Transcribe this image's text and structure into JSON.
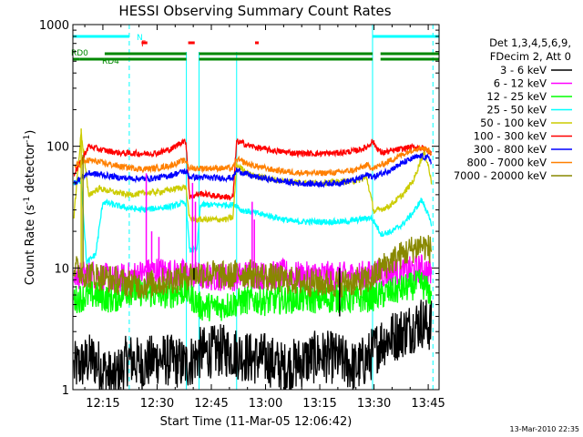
{
  "chart_data": {
    "type": "line",
    "title": "HESSI Observing Summary Count Rates",
    "xlabel": "Start Time (11-Mar-05 12:06:42)",
    "ylabel_main": "Count Rate (s",
    "ylabel_sup1": "-1",
    "ylabel_mid": " detector",
    "ylabel_sup2": "-1",
    "ylabel_end": ")",
    "y_scale": "log",
    "ylim": [
      1,
      1000
    ],
    "xlim_minutes": [
      6.7,
      108
    ],
    "x_ticks": [
      {
        "t": 15,
        "label": "12:15"
      },
      {
        "t": 30,
        "label": "12:30"
      },
      {
        "t": 45,
        "label": "12:45"
      },
      {
        "t": 60,
        "label": "13:00"
      },
      {
        "t": 75,
        "label": "13:15"
      },
      {
        "t": 90,
        "label": "13:30"
      },
      {
        "t": 105,
        "label": "13:45"
      }
    ],
    "y_ticks": [
      {
        "v": 1,
        "label": "1"
      },
      {
        "v": 10,
        "label": "10"
      },
      {
        "v": 100,
        "label": "100"
      },
      {
        "v": 1000,
        "label": "1000"
      }
    ],
    "legend_header": [
      "Det 1,3,4,5,6,9,",
      "FDecim 2, Att 0"
    ],
    "legend_position": "right",
    "flags": [
      {
        "label": "N",
        "color": "#00ffff",
        "segments": [
          [
            6.7,
            22.3
          ],
          [
            89.6,
            108
          ]
        ]
      },
      {
        "label": "F",
        "color": "#ff0000",
        "segments": [
          [
            25.7,
            27.3
          ],
          [
            38.6,
            40.4
          ],
          [
            57.1,
            58.1
          ]
        ]
      },
      {
        "label": "RD0",
        "color": "#008800",
        "segments": [
          [
            6.7,
            8.5
          ]
        ]
      },
      {
        "label": "RD4",
        "color": "#008800",
        "segments": [
          [
            8.5,
            15.5
          ],
          [
            15.5,
            38.1
          ],
          [
            41.6,
            89.6
          ],
          [
            91.8,
            108
          ]
        ]
      }
    ],
    "night_boundaries": [
      6.7,
      22.3,
      89.6,
      106.3
    ],
    "saa_boundaries": [
      38.1,
      41.6,
      52.0
    ],
    "series": [
      {
        "name": "3 - 6 keV",
        "color": "#000000",
        "style": "noisy",
        "points": [
          [
            7,
            1.5
          ],
          [
            12,
            1.8
          ],
          [
            18,
            1.2
          ],
          [
            22,
            1.8
          ],
          [
            26,
            1.6
          ],
          [
            30,
            1.8
          ],
          [
            35,
            1.7
          ],
          [
            38,
            1.6
          ],
          [
            42,
            2.0
          ],
          [
            48,
            2.1
          ],
          [
            52,
            2.0
          ],
          [
            56,
            1.8
          ],
          [
            60,
            1.8
          ],
          [
            65,
            1.5
          ],
          [
            70,
            1.7
          ],
          [
            75,
            1.9
          ],
          [
            80,
            1.8
          ],
          [
            85,
            1.5
          ],
          [
            89,
            1.9
          ],
          [
            92,
            2.5
          ],
          [
            96,
            2.8
          ],
          [
            100,
            3.2
          ],
          [
            103,
            3.6
          ],
          [
            106,
            3.3
          ]
        ]
      },
      {
        "name": "6 - 12 keV",
        "color": "#ff00ff",
        "style": "noisy",
        "points": [
          [
            7,
            8.5
          ],
          [
            12,
            9
          ],
          [
            18,
            8
          ],
          [
            22,
            8.5
          ],
          [
            26,
            9
          ],
          [
            30,
            9.5
          ],
          [
            35,
            9
          ],
          [
            38,
            9
          ],
          [
            42,
            8.5
          ],
          [
            48,
            8.5
          ],
          [
            52,
            8.5
          ],
          [
            56,
            9
          ],
          [
            60,
            8.5
          ],
          [
            65,
            9
          ],
          [
            70,
            8.5
          ],
          [
            75,
            8.8
          ],
          [
            80,
            8.5
          ],
          [
            85,
            8.7
          ],
          [
            89,
            8.8
          ],
          [
            92,
            9
          ],
          [
            96,
            9.3
          ],
          [
            100,
            9.5
          ],
          [
            103,
            10
          ],
          [
            106,
            9
          ]
        ]
      },
      {
        "name": "12 - 25 keV",
        "color": "#00ff00",
        "style": "noisy",
        "points": [
          [
            7,
            5.5
          ],
          [
            12,
            6
          ],
          [
            18,
            5.5
          ],
          [
            22,
            6.5
          ],
          [
            26,
            6.3
          ],
          [
            30,
            6
          ],
          [
            35,
            6.2
          ],
          [
            38,
            6.5
          ],
          [
            42,
            4.8
          ],
          [
            48,
            4.8
          ],
          [
            52,
            5.2
          ],
          [
            56,
            5.5
          ],
          [
            60,
            5.3
          ],
          [
            65,
            5.5
          ],
          [
            70,
            5.6
          ],
          [
            75,
            5.5
          ],
          [
            80,
            5.6
          ],
          [
            85,
            5.5
          ],
          [
            89,
            5.7
          ],
          [
            92,
            6
          ],
          [
            96,
            6.5
          ],
          [
            100,
            7
          ],
          [
            103,
            7.5
          ],
          [
            106,
            6
          ]
        ]
      },
      {
        "name": "25 - 50 keV",
        "color": "#00ffff",
        "style": "smooth",
        "points": [
          [
            7,
            50
          ],
          [
            9,
            52
          ],
          [
            10.5,
            11
          ],
          [
            13,
            13
          ],
          [
            15,
            35
          ],
          [
            18,
            33
          ],
          [
            22,
            31
          ],
          [
            26,
            30
          ],
          [
            30,
            31
          ],
          [
            34,
            32
          ],
          [
            37,
            34
          ],
          [
            38,
            34
          ],
          [
            39,
            14
          ],
          [
            41,
            14
          ],
          [
            42,
            33
          ],
          [
            46,
            33
          ],
          [
            50,
            33
          ],
          [
            52,
            33
          ],
          [
            53,
            30
          ],
          [
            58,
            28
          ],
          [
            63,
            26
          ],
          [
            68,
            24
          ],
          [
            73,
            24
          ],
          [
            78,
            24
          ],
          [
            82,
            24
          ],
          [
            86,
            25
          ],
          [
            89,
            26
          ],
          [
            90,
            24
          ],
          [
            92,
            19
          ],
          [
            95,
            20
          ],
          [
            98,
            23
          ],
          [
            101,
            29
          ],
          [
            103,
            36
          ],
          [
            104,
            33
          ],
          [
            106,
            22
          ]
        ]
      },
      {
        "name": "50 - 100 keV",
        "color": "#cccc00",
        "style": "smooth",
        "points": [
          [
            7,
            27
          ],
          [
            9,
            130
          ],
          [
            11,
            40
          ],
          [
            14,
            45
          ],
          [
            18,
            42
          ],
          [
            22,
            40
          ],
          [
            26,
            41
          ],
          [
            30,
            42
          ],
          [
            34,
            44
          ],
          [
            37,
            46
          ],
          [
            38,
            46
          ],
          [
            39,
            25
          ],
          [
            45,
            25
          ],
          [
            49,
            25
          ],
          [
            51,
            26
          ],
          [
            52,
            70
          ],
          [
            56,
            58
          ],
          [
            62,
            53
          ],
          [
            68,
            51
          ],
          [
            74,
            50
          ],
          [
            80,
            51
          ],
          [
            85,
            52
          ],
          [
            88,
            55
          ],
          [
            90,
            29
          ],
          [
            94,
            32
          ],
          [
            98,
            40
          ],
          [
            101,
            53
          ],
          [
            103,
            78
          ],
          [
            104,
            88
          ],
          [
            105,
            70
          ],
          [
            106,
            48
          ]
        ]
      },
      {
        "name": "100 - 300 keV",
        "color": "#ff0000",
        "style": "smooth",
        "points": [
          [
            7,
            60
          ],
          [
            9,
            75
          ],
          [
            11,
            100
          ],
          [
            15,
            93
          ],
          [
            20,
            88
          ],
          [
            26,
            87
          ],
          [
            30,
            88
          ],
          [
            34,
            95
          ],
          [
            37,
            110
          ],
          [
            38,
            108
          ],
          [
            39,
            38
          ],
          [
            42,
            41
          ],
          [
            46,
            39
          ],
          [
            51,
            38
          ],
          [
            52,
            110
          ],
          [
            56,
            100
          ],
          [
            62,
            92
          ],
          [
            68,
            88
          ],
          [
            74,
            87
          ],
          [
            80,
            88
          ],
          [
            85,
            92
          ],
          [
            88,
            98
          ],
          [
            89.5,
            110
          ],
          [
            92,
            88
          ],
          [
            96,
            93
          ],
          [
            100,
            98
          ],
          [
            103,
            98
          ],
          [
            105,
            92
          ],
          [
            106,
            86
          ]
        ]
      },
      {
        "name": "300 - 800 keV",
        "color": "#0000ff",
        "style": "smooth",
        "points": [
          [
            7,
            50
          ],
          [
            9,
            55
          ],
          [
            11,
            60
          ],
          [
            15,
            58
          ],
          [
            20,
            55
          ],
          [
            26,
            54
          ],
          [
            30,
            55
          ],
          [
            34,
            58
          ],
          [
            37,
            62
          ],
          [
            38,
            62
          ],
          [
            39,
            56
          ],
          [
            45,
            55
          ],
          [
            51,
            55
          ],
          [
            52,
            64
          ],
          [
            56,
            57
          ],
          [
            62,
            53
          ],
          [
            68,
            50
          ],
          [
            74,
            49
          ],
          [
            80,
            50
          ],
          [
            85,
            53
          ],
          [
            88,
            58
          ],
          [
            90,
            56
          ],
          [
            94,
            63
          ],
          [
            98,
            73
          ],
          [
            101,
            80
          ],
          [
            103,
            83
          ],
          [
            105,
            80
          ],
          [
            106,
            75
          ]
        ]
      },
      {
        "name": "800 - 7000 keV",
        "color": "#ff8000",
        "style": "smooth",
        "points": [
          [
            7,
            68
          ],
          [
            9,
            72
          ],
          [
            11,
            77
          ],
          [
            15,
            73
          ],
          [
            20,
            68
          ],
          [
            26,
            65
          ],
          [
            30,
            66
          ],
          [
            34,
            70
          ],
          [
            37,
            76
          ],
          [
            38,
            76
          ],
          [
            39,
            66
          ],
          [
            45,
            66
          ],
          [
            51,
            66
          ],
          [
            52,
            78
          ],
          [
            56,
            70
          ],
          [
            62,
            64
          ],
          [
            68,
            61
          ],
          [
            74,
            60
          ],
          [
            80,
            61
          ],
          [
            85,
            64
          ],
          [
            88,
            70
          ],
          [
            90,
            66
          ],
          [
            94,
            75
          ],
          [
            98,
            86
          ],
          [
            101,
            95
          ],
          [
            103,
            98
          ],
          [
            105,
            93
          ],
          [
            106,
            88
          ]
        ]
      },
      {
        "name": "7000 - 20000 keV",
        "color": "#888800",
        "style": "noisy",
        "points": [
          [
            7,
            10
          ],
          [
            10,
            9
          ],
          [
            14,
            8.5
          ],
          [
            18,
            8
          ],
          [
            22,
            7.5
          ],
          [
            26,
            7.2
          ],
          [
            30,
            7.5
          ],
          [
            34,
            8
          ],
          [
            38,
            8.5
          ],
          [
            40,
            9
          ],
          [
            45,
            9
          ],
          [
            50,
            8.5
          ],
          [
            52,
            9
          ],
          [
            56,
            9
          ],
          [
            60,
            8.5
          ],
          [
            65,
            8
          ],
          [
            70,
            7.7
          ],
          [
            75,
            7.5
          ],
          [
            80,
            7.5
          ],
          [
            85,
            7.7
          ],
          [
            89,
            8
          ],
          [
            92,
            10
          ],
          [
            96,
            12
          ],
          [
            100,
            14
          ],
          [
            103,
            15.5
          ],
          [
            106,
            14
          ]
        ]
      }
    ],
    "spikes": [
      {
        "t": 9.0,
        "v": 140,
        "color": "#cccc00"
      },
      {
        "t": 9.5,
        "v": 85,
        "color": "#888800"
      },
      {
        "t": 27.0,
        "v": 60,
        "color": "#ff00ff"
      },
      {
        "t": 28.5,
        "v": 20,
        "color": "#ff00ff"
      },
      {
        "t": 30.5,
        "v": 18,
        "color": "#ff00ff"
      },
      {
        "t": 39.8,
        "v": 50,
        "color": "#ff00ff"
      },
      {
        "t": 40.6,
        "v": 35,
        "color": "#ff00ff"
      },
      {
        "t": 56.3,
        "v": 35,
        "color": "#ff00ff"
      },
      {
        "t": 56.9,
        "v": 25,
        "color": "#ff00ff"
      },
      {
        "t": 40.2,
        "v": 8,
        "color": "#000000"
      },
      {
        "t": 80.5,
        "v": 4,
        "color": "#000000"
      }
    ]
  },
  "footer_timestamp": "13-Mar-2010 22:35"
}
